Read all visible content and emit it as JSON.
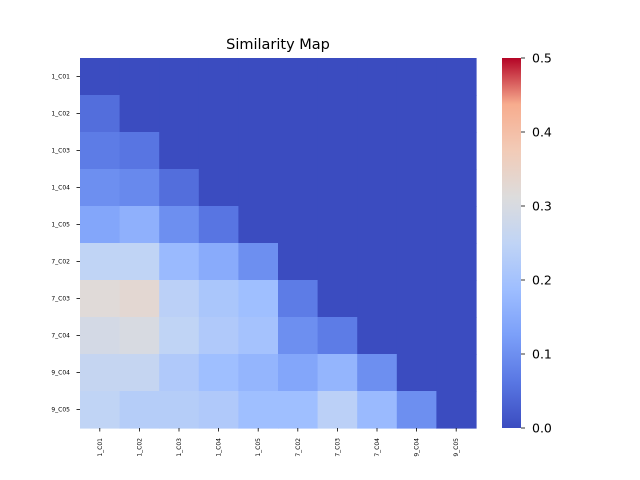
{
  "chart_data": {
    "type": "heatmap",
    "title": "Similarity Map",
    "labels": [
      "1_C01",
      "1_C02",
      "1_C03",
      "1_C04",
      "1_C05",
      "7_C02",
      "7_C03",
      "7_C04",
      "9_C04",
      "9_C05"
    ],
    "matrix": [
      [
        0.0,
        0.0,
        0.0,
        0.0,
        0.0,
        0.0,
        0.0,
        0.0,
        0.0,
        0.0
      ],
      [
        0.05,
        0.0,
        0.0,
        0.0,
        0.0,
        0.0,
        0.0,
        0.0,
        0.0,
        0.0
      ],
      [
        0.07,
        0.06,
        0.0,
        0.0,
        0.0,
        0.0,
        0.0,
        0.0,
        0.0,
        0.0
      ],
      [
        0.1,
        0.09,
        0.05,
        0.0,
        0.0,
        0.0,
        0.0,
        0.0,
        0.0,
        0.0
      ],
      [
        0.14,
        0.16,
        0.1,
        0.06,
        0.0,
        0.0,
        0.0,
        0.0,
        0.0,
        0.0
      ],
      [
        0.25,
        0.25,
        0.18,
        0.15,
        0.1,
        0.0,
        0.0,
        0.0,
        0.0,
        0.0
      ],
      [
        0.32,
        0.33,
        0.24,
        0.21,
        0.19,
        0.07,
        0.0,
        0.0,
        0.0,
        0.0
      ],
      [
        0.29,
        0.3,
        0.25,
        0.22,
        0.2,
        0.1,
        0.07,
        0.0,
        0.0,
        0.0
      ],
      [
        0.26,
        0.26,
        0.22,
        0.19,
        0.17,
        0.14,
        0.17,
        0.1,
        0.0,
        0.0
      ],
      [
        0.25,
        0.23,
        0.23,
        0.22,
        0.19,
        0.19,
        0.24,
        0.18,
        0.1,
        0.0
      ]
    ],
    "vmin": 0.0,
    "vmax": 0.5,
    "colormap": "coolwarm",
    "colorbar_ticks": [
      "0.0",
      "0.1",
      "0.2",
      "0.3",
      "0.4",
      "0.5"
    ],
    "colorbar_values": [
      0.0,
      0.1,
      0.2,
      0.3,
      0.4,
      0.5
    ],
    "grid": false,
    "colorbar_position": "right"
  }
}
